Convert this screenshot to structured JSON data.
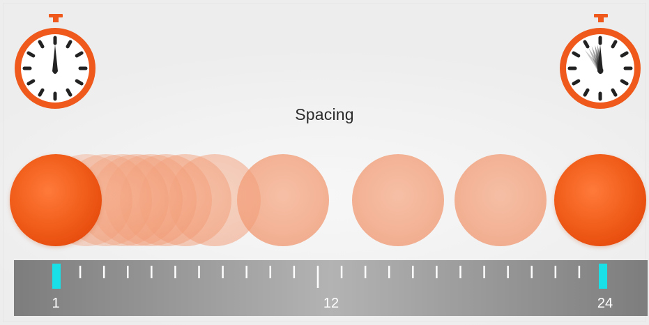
{
  "title": "Spacing",
  "colors": {
    "accent_orange": "#ef5a1c",
    "ghost_orange": "#f4a07c",
    "marker_cyan": "#19e0e6",
    "timeline_gray": "#9a9a9a"
  },
  "icons": {
    "start_stopwatch": "stopwatch-icon",
    "end_stopwatch": "stopwatch-motion-icon"
  },
  "balls": {
    "count": 12,
    "start_frame": 1,
    "end_frame": 24
  },
  "timeline": {
    "labels": [
      "1",
      "12",
      "24"
    ],
    "frames": 24,
    "keyframes": [
      1,
      24
    ],
    "mid_tick": 12
  }
}
